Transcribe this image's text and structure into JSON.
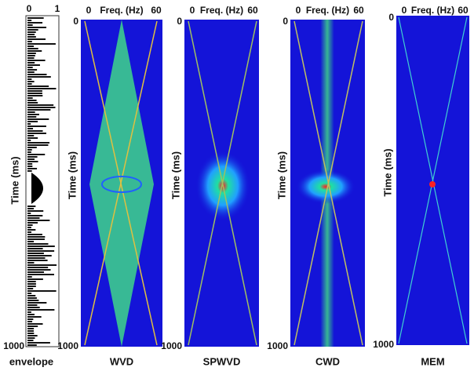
{
  "panels": [
    {
      "top_ticks": [
        "0",
        "1"
      ],
      "y_axis_label": "Time (ms)",
      "y_ticks": [
        "1000"
      ],
      "label": "envelope"
    },
    {
      "x_axis_label": "Freq. (Hz)",
      "top_ticks": [
        "0",
        "60"
      ],
      "y_axis_label": "Time (ms)",
      "y_ticks": [
        "0",
        "1000"
      ],
      "label": "WVD"
    },
    {
      "x_axis_label": "Freq. (Hz)",
      "top_ticks": [
        "0",
        "60"
      ],
      "y_axis_label": "Time (ms)",
      "y_ticks": [
        "0",
        "1000"
      ],
      "label": "SPWVD"
    },
    {
      "x_axis_label": "Freq. (Hz)",
      "top_ticks": [
        "0",
        "60"
      ],
      "y_axis_label": "Time (ms)",
      "y_ticks": [
        "0",
        "1000"
      ],
      "label": "CWD"
    },
    {
      "x_axis_label": "Freq. (Hz)",
      "top_ticks": [
        "0",
        "60"
      ],
      "y_axis_label": "Time (ms)",
      "y_ticks": [
        "0",
        "1000"
      ],
      "label": "MEM"
    }
  ]
}
